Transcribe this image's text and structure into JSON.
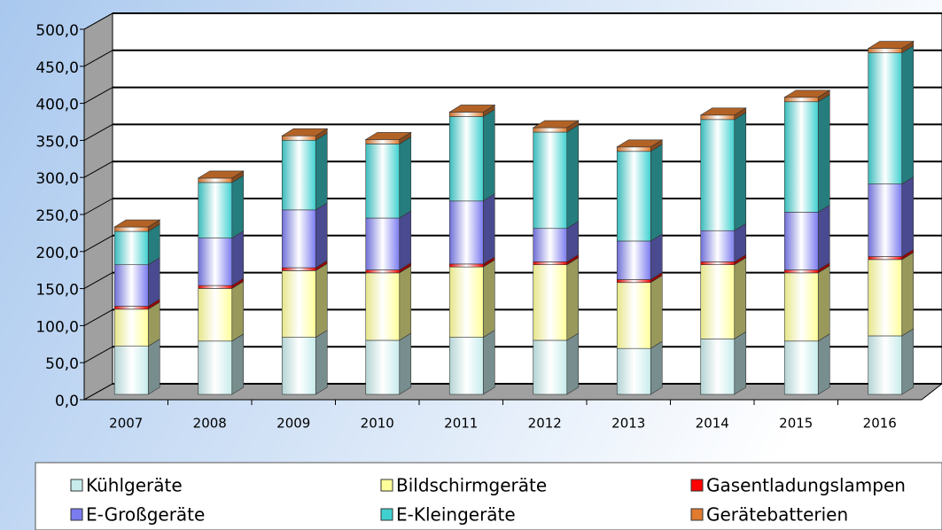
{
  "chart_data": {
    "type": "bar",
    "stacked": true,
    "categories": [
      "2007",
      "2008",
      "2009",
      "2010",
      "2011",
      "2012",
      "2013",
      "2014",
      "2015",
      "2016"
    ],
    "series": [
      {
        "name": "Kühlgeräte",
        "color": "#c8ecec",
        "values": [
          65,
          72,
          77,
          73,
          77,
          73,
          62,
          75,
          72,
          79
        ]
      },
      {
        "name": "Bildschirmgeräte",
        "color": "#ffff99",
        "values": [
          50,
          71,
          90,
          91,
          95,
          102,
          89,
          100,
          92,
          103
        ]
      },
      {
        "name": "Gasentladungslampen",
        "color": "#ff0000",
        "values": [
          4,
          4,
          4,
          4,
          4,
          4,
          4,
          4,
          4,
          4
        ]
      },
      {
        "name": "E-Großgeräte",
        "color": "#7b7bf0",
        "values": [
          56,
          64,
          78,
          70,
          85,
          45,
          52,
          42,
          78,
          98
        ]
      },
      {
        "name": "E-Kleingeräte",
        "color": "#40d0d0",
        "values": [
          45,
          75,
          94,
          100,
          114,
          130,
          121,
          150,
          149,
          177
        ]
      },
      {
        "name": "Gerätebatterien",
        "color": "#e07b30",
        "values": [
          6,
          6,
          6,
          6,
          6,
          6,
          6,
          6,
          6,
          6
        ]
      }
    ],
    "ylim": [
      0,
      500
    ],
    "yticks": [
      {
        "value": 0,
        "label": "0,0"
      },
      {
        "value": 50,
        "label": "50,0"
      },
      {
        "value": 100,
        "label": "100,0"
      },
      {
        "value": 150,
        "label": "150,0"
      },
      {
        "value": 200,
        "label": "200,0"
      },
      {
        "value": 250,
        "label": "250,0"
      },
      {
        "value": 300,
        "label": "300,0"
      },
      {
        "value": 350,
        "label": "350,0"
      },
      {
        "value": 400,
        "label": "400,0"
      },
      {
        "value": 450,
        "label": "450,0"
      },
      {
        "value": 500,
        "label": "500,0"
      }
    ],
    "grid": true,
    "legend": "bottom"
  }
}
